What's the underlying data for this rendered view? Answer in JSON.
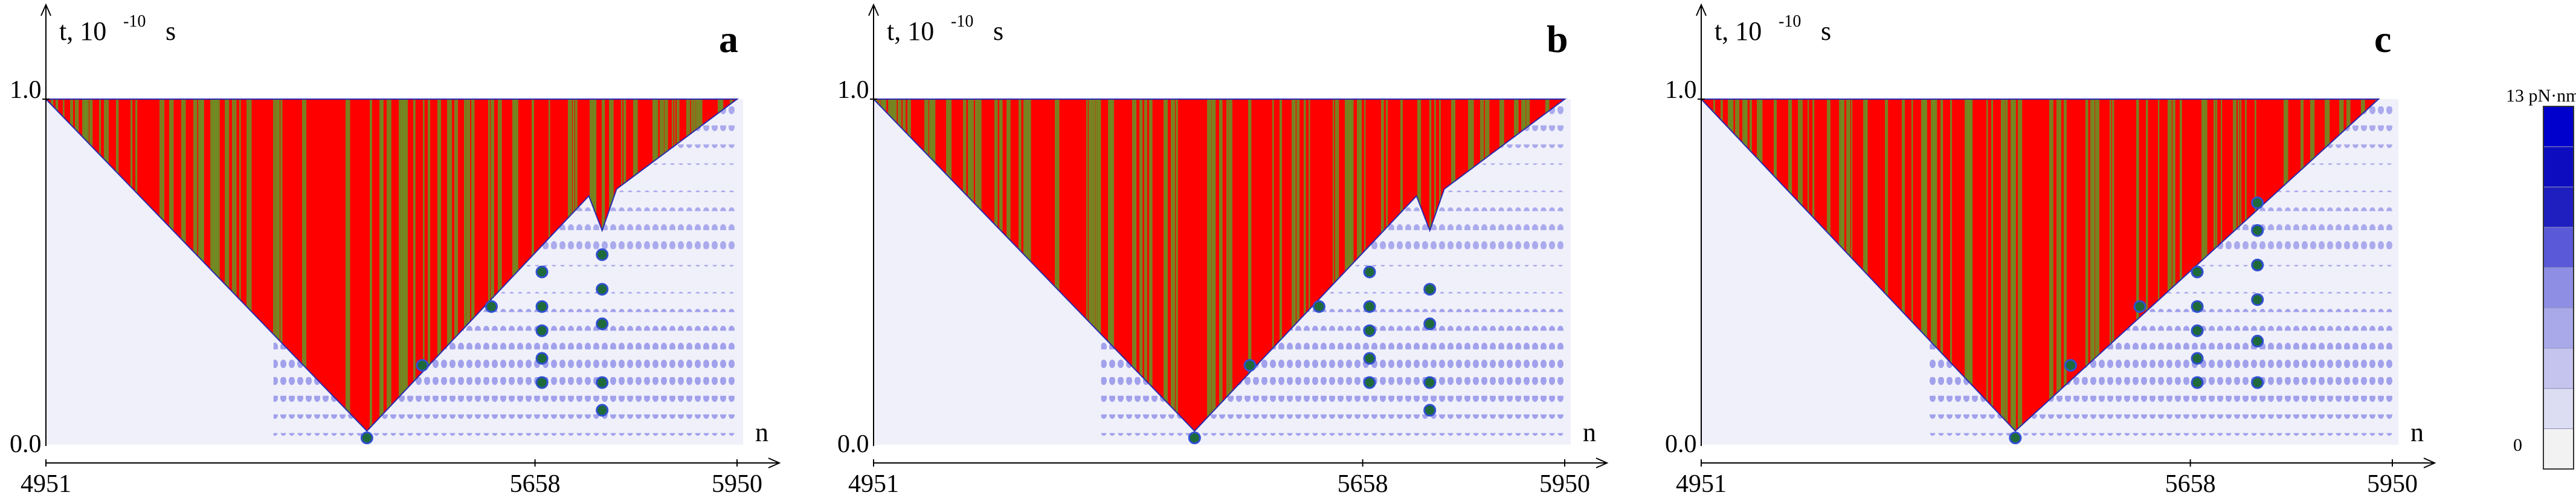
{
  "chart_data": [
    {
      "type": "heatmap",
      "panel_label": "a",
      "ylabel": "t, 10",
      "ylabel_exp": "-10",
      "ylabel_unit": "s",
      "xlabel": "n",
      "x_ticks": [
        "4951",
        "5658",
        "5950"
      ],
      "y_ticks": [
        "0.0",
        "1.0"
      ],
      "xlim": [
        4951,
        5950
      ],
      "ylim": [
        0.0,
        1.0
      ],
      "cone": {
        "tip_n": 5415,
        "left_top_n": 4951,
        "right_top_n": 5950
      },
      "notch": {
        "n": 5755,
        "t": 0.62
      },
      "dots": [
        {
          "n": 5415,
          "t": 0.02
        },
        {
          "n": 5495,
          "t": 0.23
        },
        {
          "n": 5595,
          "t": 0.4
        },
        {
          "n": 5668,
          "t": 0.18
        },
        {
          "n": 5668,
          "t": 0.25
        },
        {
          "n": 5668,
          "t": 0.33
        },
        {
          "n": 5668,
          "t": 0.4
        },
        {
          "n": 5668,
          "t": 0.5
        },
        {
          "n": 5755,
          "t": 0.55
        },
        {
          "n": 5755,
          "t": 0.45
        },
        {
          "n": 5755,
          "t": 0.35
        },
        {
          "n": 5755,
          "t": 0.18
        },
        {
          "n": 5755,
          "t": 0.1
        }
      ]
    },
    {
      "type": "heatmap",
      "panel_label": "b",
      "ylabel": "t, 10",
      "ylabel_exp": "-10",
      "ylabel_unit": "s",
      "xlabel": "n",
      "x_ticks": [
        "4951",
        "5658",
        "5950"
      ],
      "y_ticks": [
        "0.0",
        "1.0"
      ],
      "xlim": [
        4951,
        5950
      ],
      "ylim": [
        0.0,
        1.0
      ],
      "cone": {
        "tip_n": 5415,
        "left_top_n": 4951,
        "right_top_n": 5950
      },
      "notch": {
        "n": 5755,
        "t": 0.62
      },
      "dots": [
        {
          "n": 5415,
          "t": 0.02
        },
        {
          "n": 5495,
          "t": 0.23
        },
        {
          "n": 5595,
          "t": 0.4
        },
        {
          "n": 5668,
          "t": 0.18
        },
        {
          "n": 5668,
          "t": 0.25
        },
        {
          "n": 5668,
          "t": 0.33
        },
        {
          "n": 5668,
          "t": 0.4
        },
        {
          "n": 5668,
          "t": 0.5
        },
        {
          "n": 5755,
          "t": 0.45
        },
        {
          "n": 5755,
          "t": 0.35
        },
        {
          "n": 5755,
          "t": 0.18
        },
        {
          "n": 5755,
          "t": 0.1
        }
      ]
    },
    {
      "type": "heatmap",
      "panel_label": "c",
      "ylabel": "t, 10",
      "ylabel_exp": "-10",
      "ylabel_unit": "s",
      "xlabel": "n",
      "x_ticks": [
        "4951",
        "5658",
        "5950"
      ],
      "y_ticks": [
        "0.0",
        "1.0"
      ],
      "xlim": [
        4951,
        5950
      ],
      "ylim": [
        0.0,
        1.0
      ],
      "cone": {
        "tip_n": 5405,
        "left_top_n": 4951,
        "right_top_n": 5930
      },
      "notch": null,
      "dots": [
        {
          "n": 5405,
          "t": 0.02
        },
        {
          "n": 5485,
          "t": 0.23
        },
        {
          "n": 5585,
          "t": 0.4
        },
        {
          "n": 5668,
          "t": 0.18
        },
        {
          "n": 5668,
          "t": 0.25
        },
        {
          "n": 5668,
          "t": 0.33
        },
        {
          "n": 5668,
          "t": 0.4
        },
        {
          "n": 5668,
          "t": 0.5
        },
        {
          "n": 5755,
          "t": 0.52
        },
        {
          "n": 5755,
          "t": 0.42
        },
        {
          "n": 5755,
          "t": 0.3
        },
        {
          "n": 5755,
          "t": 0.18
        },
        {
          "n": 5755,
          "t": 0.62
        },
        {
          "n": 5755,
          "t": 0.7
        }
      ]
    }
  ],
  "colorbar": {
    "max_label": "13 pN·nm",
    "min_label": "0",
    "colors": [
      "#f2f2f2",
      "#dcdcf2",
      "#c4c4ee",
      "#a9a9e9",
      "#8e8ee4",
      "#5a5ad8",
      "#1f1fbf",
      "#0d0dbf",
      "#0000cc"
    ]
  },
  "colors": {
    "cone_red": "#ff0000",
    "cone_olive": "#6b8e23",
    "background": "#f0f0fa",
    "stripe": "#7a7ae8",
    "dot": "#1e6a3a"
  }
}
